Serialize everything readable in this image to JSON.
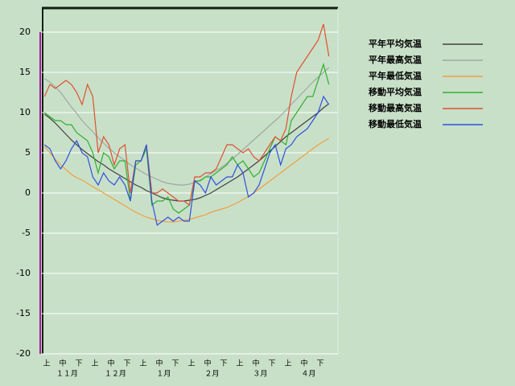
{
  "chart_data": {
    "type": "line",
    "categories": [
      null,
      "上",
      null,
      null,
      "中",
      null,
      null,
      "下",
      null,
      null,
      "上",
      null,
      null,
      "中",
      null,
      null,
      "下",
      null,
      null,
      "上",
      null,
      null,
      "中",
      null,
      null,
      "下",
      null,
      null,
      "上",
      null,
      null,
      "中",
      null,
      null,
      "下",
      null,
      null,
      "上",
      null,
      null,
      "中",
      null,
      null,
      "下",
      null,
      null,
      "上",
      null,
      null,
      "中",
      null,
      null,
      "下",
      null
    ],
    "x_groups": [
      "１１月",
      "１２月",
      "１月",
      "２月",
      "３月",
      "４月"
    ],
    "ylim": [
      -20,
      20
    ],
    "yticks": [
      -20,
      -15,
      -10,
      -5,
      0,
      5,
      10,
      15,
      20
    ],
    "grid": true,
    "legend": "right",
    "series": [
      {
        "name": "平年平均気温",
        "color": "#404040",
        "values": [
          9.8,
          9.3,
          8.7,
          8.0,
          7.3,
          6.6,
          6.0,
          5.4,
          4.9,
          4.4,
          3.9,
          3.5,
          3.0,
          2.6,
          2.2,
          1.8,
          1.4,
          1.0,
          0.7,
          0.3,
          0.0,
          -0.3,
          -0.6,
          -0.8,
          -0.9,
          -1.0,
          -1.0,
          -0.9,
          -0.8,
          -0.6,
          -0.3,
          0.0,
          0.4,
          0.8,
          1.2,
          1.6,
          2.0,
          2.5,
          3.0,
          3.5,
          4.0,
          4.6,
          5.2,
          5.8,
          6.4,
          7.0,
          7.5,
          8.0,
          8.5,
          9.0,
          9.5,
          10.0,
          10.6,
          11.1
        ]
      },
      {
        "name": "平年最高気温",
        "color": "#a0a8a0",
        "values": [
          14.2,
          13.8,
          13.2,
          12.5,
          11.6,
          10.7,
          9.9,
          9.0,
          8.3,
          7.6,
          6.9,
          6.2,
          5.6,
          5.0,
          4.5,
          4.0,
          3.5,
          3.1,
          2.7,
          2.3,
          2.0,
          1.7,
          1.4,
          1.2,
          1.1,
          1.0,
          1.0,
          1.1,
          1.3,
          1.6,
          2.0,
          2.4,
          2.8,
          3.2,
          3.7,
          4.2,
          4.8,
          5.4,
          6.0,
          6.6,
          7.2,
          7.8,
          8.4,
          9.0,
          9.6,
          10.3,
          11.0,
          11.7,
          12.4,
          13.1,
          13.8,
          14.4,
          15.0,
          15.6
        ]
      },
      {
        "name": "平年最低気温",
        "color": "#f0a040",
        "values": [
          5.8,
          5.0,
          4.2,
          3.5,
          2.9,
          2.3,
          1.9,
          1.6,
          1.2,
          0.8,
          0.4,
          0.0,
          -0.4,
          -0.8,
          -1.2,
          -1.6,
          -2.0,
          -2.4,
          -2.7,
          -3.0,
          -3.2,
          -3.4,
          -3.5,
          -3.6,
          -3.6,
          -3.5,
          -3.4,
          -3.3,
          -3.1,
          -2.9,
          -2.7,
          -2.4,
          -2.2,
          -2.0,
          -1.8,
          -1.5,
          -1.2,
          -0.8,
          -0.4,
          0.0,
          0.5,
          1.0,
          1.5,
          2.0,
          2.5,
          3.0,
          3.5,
          4.0,
          4.5,
          5.0,
          5.5,
          6.0,
          6.4,
          6.8
        ]
      },
      {
        "name": "移動平均気温",
        "color": "#30b030",
        "values": [
          10,
          9.5,
          9,
          9,
          8.5,
          8.5,
          7.5,
          7,
          6.5,
          5,
          2.5,
          5,
          4.5,
          3,
          4,
          4,
          -1,
          3.5,
          4,
          5.5,
          -1.5,
          -1,
          -1,
          -0.5,
          -2,
          -2.5,
          -2,
          -1.5,
          1.5,
          1.5,
          2,
          2,
          2.5,
          3,
          3.5,
          4.5,
          3.5,
          4,
          3,
          2,
          2.5,
          4,
          5.5,
          7,
          6.5,
          6,
          9,
          10,
          11,
          12,
          12,
          14,
          16,
          13.5
        ]
      },
      {
        "name": "移動最高気温",
        "color": "#e05030",
        "values": [
          12,
          13.5,
          13,
          13.5,
          14,
          13.5,
          12.5,
          11,
          13.5,
          12,
          5,
          7,
          6,
          3.5,
          5.5,
          6,
          0,
          4,
          4,
          6,
          0,
          0,
          0.5,
          0,
          -0.5,
          -1,
          -1,
          -1.5,
          2,
          2,
          2.5,
          2.5,
          3,
          4.5,
          6,
          6,
          5.5,
          5,
          5.5,
          4.5,
          4,
          5,
          6,
          7,
          6.5,
          8,
          12,
          15,
          16,
          17,
          18,
          19,
          21,
          17
        ]
      },
      {
        "name": "移動最低気温",
        "color": "#3050e0",
        "values": [
          6,
          5.5,
          4,
          3,
          4,
          5.5,
          6.5,
          5,
          4.5,
          2,
          1,
          2.5,
          1.5,
          1,
          2,
          1,
          -1,
          4,
          4,
          6,
          -1,
          -4,
          -3.5,
          -3,
          -3.5,
          -3,
          -3.5,
          -3.5,
          1.5,
          1,
          0,
          2,
          1,
          1.5,
          2,
          2,
          3.5,
          2.5,
          -0.5,
          0,
          1,
          3,
          5,
          6,
          3.5,
          5.5,
          6,
          7,
          7.5,
          8,
          9,
          10,
          12,
          11
        ]
      }
    ]
  }
}
